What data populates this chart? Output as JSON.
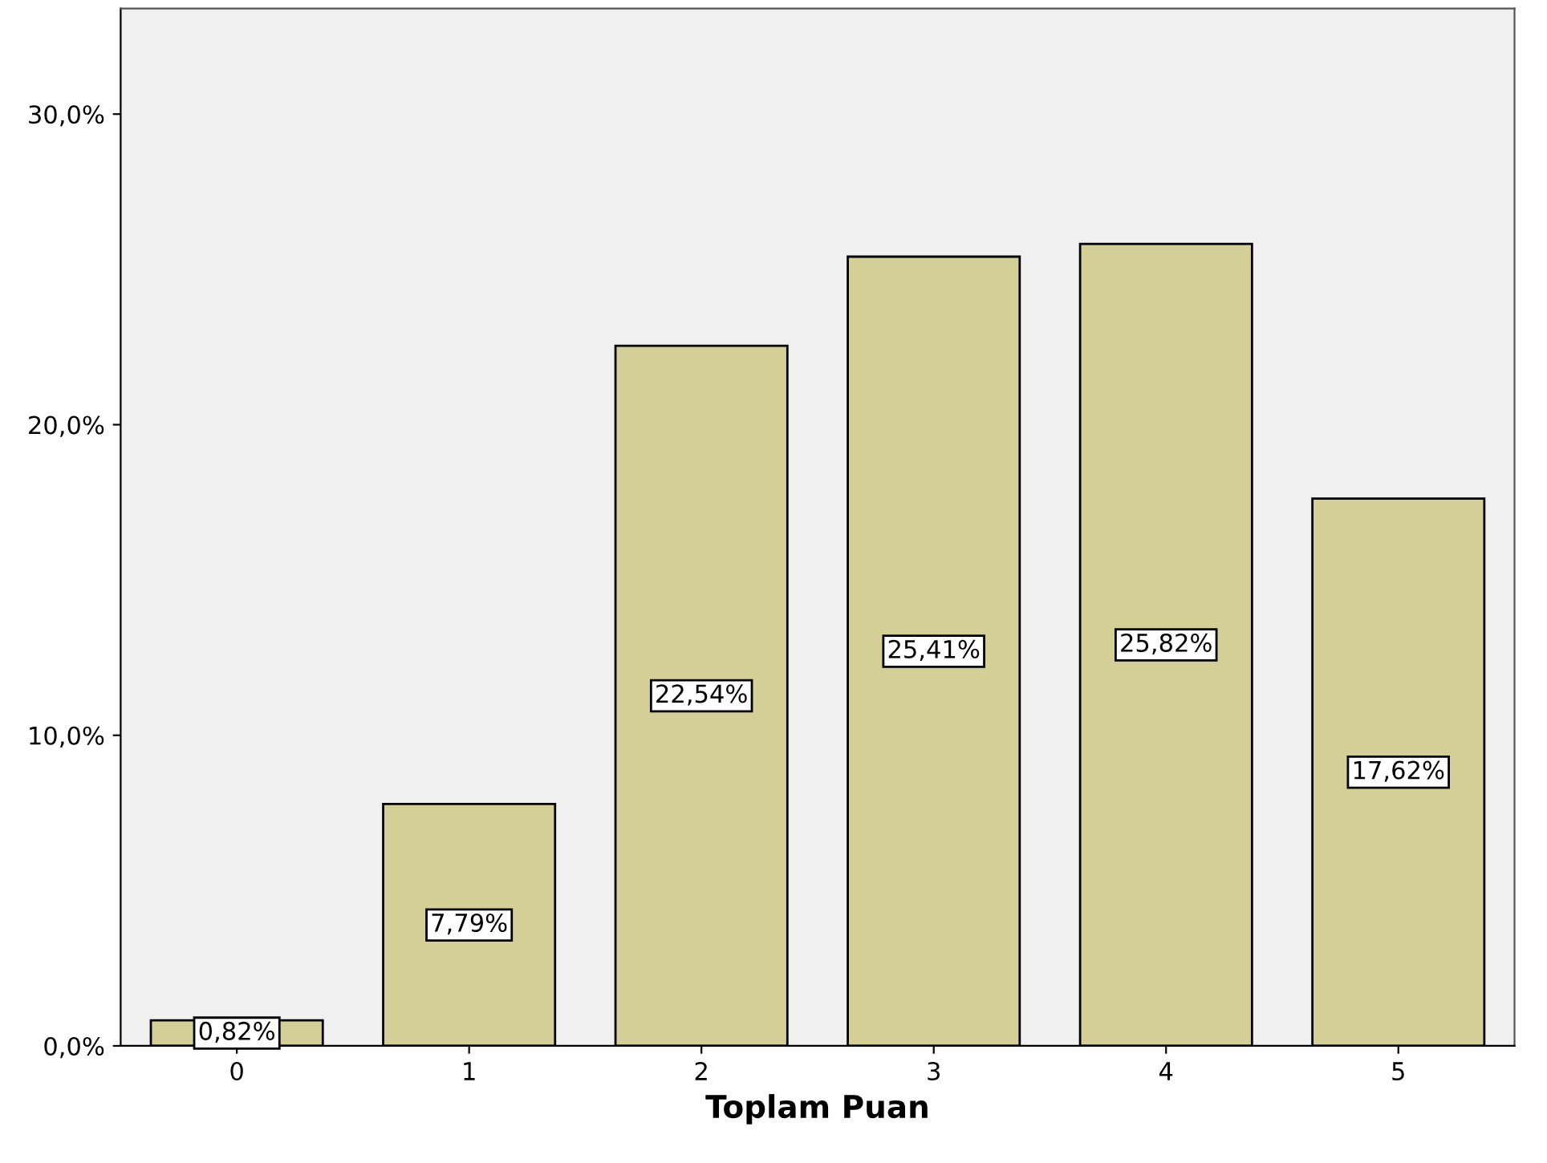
{
  "chart_data": {
    "type": "bar",
    "xlabel": "Toplam Puan",
    "categories": [
      "0",
      "1",
      "2",
      "3",
      "4",
      "5"
    ],
    "values": [
      0.82,
      7.79,
      22.54,
      25.41,
      25.82,
      17.62
    ],
    "value_labels": [
      "0,82%",
      "7,79%",
      "22,54%",
      "25,41%",
      "25,82%",
      "17,62%"
    ],
    "color": "#d4cf96",
    "ylim": [
      0,
      33.4
    ],
    "yticks": [
      {
        "value": 0,
        "label": "0,0%"
      },
      {
        "value": 10,
        "label": "10,0%"
      },
      {
        "value": 20,
        "label": "20,0%"
      },
      {
        "value": 30,
        "label": "30,0%"
      }
    ],
    "grid": false,
    "legend": false
  }
}
